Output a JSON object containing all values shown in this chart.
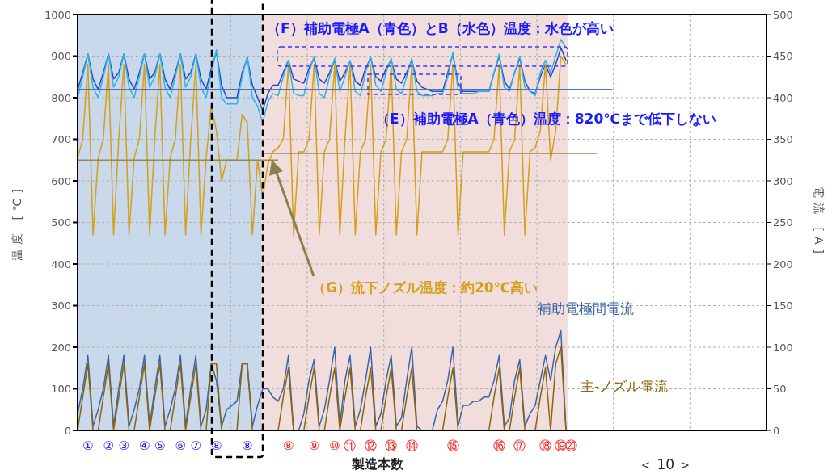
{
  "chart_data": {
    "type": "line",
    "ylabel": "温度 [℃]",
    "y2label": "電流 [A]",
    "xlabel": "製造本数",
    "categories": [
      null,
      null,
      "①",
      null,
      null,
      null,
      "②",
      null,
      null,
      "③",
      null,
      null,
      null,
      "④",
      null,
      null,
      "⑤",
      null,
      null,
      null,
      "⑥",
      null,
      null,
      "⑦",
      null,
      null,
      null,
      "⑧",
      null,
      null,
      null,
      null,
      null,
      "⑧",
      null,
      null,
      null,
      null,
      null,
      null,
      null,
      "⑧",
      null,
      null,
      null,
      null,
      "⑨",
      null,
      null,
      null,
      "⑩",
      null,
      null,
      "⑪",
      null,
      null,
      null,
      "⑫",
      null,
      null,
      null,
      "⑬",
      null,
      null,
      null,
      "⑭",
      null,
      null,
      null,
      null,
      null,
      null,
      null,
      "⑮",
      null,
      null,
      null,
      null,
      null,
      null,
      null,
      null,
      "⑯",
      null,
      null,
      null,
      "⑰",
      null,
      null,
      null,
      null,
      "⑱",
      null,
      null,
      "⑲",
      null,
      "⑳",
      null,
      null,
      null,
      null,
      null,
      null,
      null,
      null,
      null,
      null,
      null,
      null,
      null,
      null,
      null,
      null,
      null,
      null,
      null,
      null,
      null,
      null,
      null,
      null,
      null,
      null,
      null,
      null,
      null,
      null,
      null,
      null,
      null,
      null,
      null,
      null,
      null,
      null
    ],
    "ylim": [
      0,
      1000
    ],
    "yticks": [
      0,
      100,
      200,
      300,
      400,
      500,
      600,
      700,
      800,
      900,
      1000
    ],
    "y2lim": [
      0,
      500
    ],
    "y2ticks": [
      0,
      50,
      100,
      150,
      200,
      250,
      300,
      350,
      400,
      450,
      500
    ],
    "grid": true,
    "series": [
      {
        "color": "#2a46c4",
        "values": [
          820,
          860,
          905,
          845,
          820,
          860,
          905,
          845,
          860,
          905,
          845,
          820,
          860,
          905,
          845,
          860,
          905,
          845,
          820,
          860,
          905,
          845,
          860,
          905,
          845,
          820,
          870,
          910,
          830,
          800,
          800,
          800,
          860,
          895,
          830,
          800,
          770,
          810,
          830,
          830,
          860,
          890,
          845,
          840,
          835,
          870,
          895,
          845,
          835,
          860,
          890,
          840,
          860,
          888,
          840,
          830,
          870,
          895,
          850,
          840,
          870,
          890,
          845,
          835,
          860,
          890,
          840,
          825,
          820,
          815,
          815,
          815,
          860,
          905,
          835,
          815,
          815,
          815,
          815,
          815,
          815,
          860,
          900,
          840,
          820,
          860,
          895,
          840,
          815,
          810,
          850,
          880,
          850,
          880,
          920,
          890,
          null,
          null,
          null,
          null,
          null,
          null,
          null,
          null,
          null,
          null,
          null,
          null,
          null,
          null,
          null,
          null,
          null,
          null,
          null,
          null,
          null,
          null,
          null,
          null,
          null,
          null,
          null,
          null,
          null,
          null,
          null,
          null,
          null,
          null,
          null,
          null,
          null,
          null,
          null
        ]
      },
      {
        "color": "#2cb4e6",
        "values": [
          800,
          850,
          905,
          825,
          800,
          850,
          905,
          825,
          850,
          905,
          825,
          800,
          850,
          905,
          825,
          850,
          905,
          825,
          800,
          850,
          905,
          825,
          850,
          905,
          825,
          800,
          860,
          915,
          800,
          785,
          785,
          785,
          850,
          900,
          800,
          780,
          740,
          790,
          810,
          805,
          850,
          890,
          810,
          805,
          805,
          860,
          900,
          810,
          800,
          850,
          895,
          815,
          850,
          890,
          815,
          805,
          860,
          900,
          830,
          815,
          860,
          895,
          820,
          810,
          850,
          895,
          815,
          805,
          805,
          805,
          810,
          810,
          850,
          910,
          820,
          810,
          810,
          810,
          815,
          815,
          815,
          860,
          905,
          825,
          815,
          860,
          900,
          825,
          815,
          805,
          860,
          890,
          860,
          900,
          940,
          920,
          null,
          null,
          null,
          null,
          null,
          null,
          null,
          null,
          null,
          null,
          null,
          null,
          null,
          null,
          null,
          null,
          null,
          null,
          null,
          null,
          null,
          null,
          null,
          null,
          null,
          null,
          null,
          null,
          null,
          null,
          null,
          null,
          null,
          null,
          null,
          null,
          null,
          null,
          null
        ]
      },
      {
        "color": "#d4a017",
        "values": [
          655,
          700,
          880,
          470,
          655,
          700,
          880,
          470,
          700,
          880,
          470,
          655,
          700,
          880,
          470,
          700,
          880,
          470,
          655,
          700,
          880,
          470,
          700,
          880,
          470,
          655,
          780,
          720,
          600,
          650,
          650,
          650,
          760,
          740,
          470,
          650,
          560,
          640,
          670,
          680,
          700,
          880,
          470,
          670,
          670,
          700,
          880,
          470,
          670,
          700,
          880,
          470,
          700,
          880,
          470,
          670,
          700,
          880,
          470,
          670,
          700,
          880,
          470,
          670,
          700,
          880,
          470,
          670,
          670,
          670,
          670,
          670,
          700,
          880,
          470,
          670,
          670,
          670,
          670,
          670,
          670,
          700,
          880,
          470,
          670,
          700,
          880,
          470,
          670,
          680,
          720,
          880,
          650,
          720,
          900,
          880,
          null,
          null,
          null,
          null,
          null,
          null,
          null,
          null,
          null,
          null,
          null,
          null,
          null,
          null,
          null,
          null,
          null,
          null,
          null,
          null,
          null,
          null,
          null,
          null,
          null,
          null,
          null,
          null,
          null,
          null,
          null,
          null,
          null,
          null,
          null,
          null,
          null,
          null,
          null
        ]
      },
      {
        "name": "補助電極間電流",
        "color": "#3a64a8",
        "axis": "y2",
        "values": [
          20,
          50,
          90,
          5,
          25,
          50,
          90,
          5,
          50,
          90,
          5,
          25,
          50,
          90,
          5,
          50,
          90,
          5,
          25,
          50,
          90,
          5,
          50,
          90,
          5,
          25,
          80,
          60,
          5,
          25,
          30,
          35,
          80,
          80,
          5,
          30,
          50,
          50,
          40,
          35,
          50,
          90,
          0,
          0,
          20,
          60,
          85,
          5,
          25,
          60,
          100,
          5,
          60,
          90,
          5,
          25,
          60,
          100,
          5,
          20,
          60,
          90,
          5,
          15,
          60,
          100,
          5,
          0,
          0,
          0,
          25,
          35,
          60,
          100,
          5,
          30,
          30,
          35,
          35,
          40,
          40,
          60,
          90,
          5,
          15,
          60,
          85,
          5,
          20,
          30,
          60,
          90,
          60,
          100,
          120,
          0,
          null,
          null,
          null,
          null,
          null,
          null,
          null,
          null,
          null,
          null,
          null,
          null,
          null,
          null,
          null,
          null,
          null,
          null,
          null,
          null,
          null,
          null,
          null,
          null,
          null,
          null,
          null,
          null,
          null,
          null,
          null,
          null,
          null,
          null,
          null,
          null,
          null,
          null,
          null
        ]
      },
      {
        "name": "主-ノズル電流",
        "color": "#8b6508",
        "axis": "y2",
        "values": [
          0,
          40,
          80,
          0,
          0,
          40,
          80,
          0,
          40,
          80,
          0,
          0,
          40,
          80,
          0,
          40,
          80,
          0,
          0,
          40,
          80,
          0,
          40,
          80,
          0,
          0,
          80,
          80,
          0,
          0,
          0,
          0,
          80,
          80,
          0,
          0,
          0,
          0,
          0,
          0,
          40,
          75,
          0,
          0,
          0,
          40,
          75,
          0,
          0,
          40,
          75,
          0,
          40,
          75,
          0,
          0,
          40,
          75,
          0,
          0,
          40,
          75,
          0,
          0,
          40,
          75,
          0,
          0,
          0,
          0,
          0,
          0,
          40,
          75,
          0,
          0,
          0,
          0,
          0,
          0,
          0,
          40,
          75,
          0,
          0,
          40,
          75,
          0,
          0,
          0,
          40,
          75,
          0,
          80,
          100,
          0,
          null,
          null,
          null,
          null,
          null,
          null,
          null,
          null,
          null,
          null,
          null,
          null,
          null,
          null,
          null,
          null,
          null,
          null,
          null,
          null,
          null,
          null,
          null,
          null,
          null,
          null,
          null,
          null,
          null,
          null,
          null,
          null,
          null,
          null,
          null,
          null,
          null,
          null,
          null
        ]
      },
      {
        "color": "#4f74b0",
        "values": [
          820,
          820,
          820,
          820,
          820,
          820,
          820,
          820,
          820,
          820,
          820,
          820,
          820,
          820,
          820,
          820,
          820,
          820,
          820,
          820,
          820,
          820,
          820,
          820,
          820,
          820,
          820,
          820,
          820,
          820,
          820,
          820,
          820,
          820,
          820,
          820,
          820,
          820,
          820,
          820,
          820,
          820,
          820,
          820,
          820,
          820,
          820,
          820,
          820,
          820,
          820,
          820,
          820,
          820,
          820,
          820,
          820,
          820,
          820,
          820,
          820,
          820,
          820,
          820,
          820,
          820,
          820,
          820,
          820,
          820,
          820,
          820,
          820,
          820,
          820,
          820,
          820,
          820,
          820,
          820,
          820,
          820,
          820,
          820,
          820,
          820,
          820,
          820,
          820,
          820,
          820,
          820,
          820,
          820,
          820,
          820,
          820,
          820,
          820,
          820,
          820,
          820,
          820,
          820,
          820,
          null,
          null,
          null,
          null,
          null,
          null,
          null,
          null,
          null,
          null,
          null,
          null,
          null,
          null,
          null,
          null,
          null,
          null,
          null,
          null,
          null,
          null,
          null,
          null,
          null,
          null,
          null,
          null,
          null,
          null
        ]
      },
      {
        "color": "#9a8a4a",
        "values": [
          650,
          650,
          650,
          650,
          650,
          650,
          650,
          650,
          650,
          650,
          650,
          650,
          650,
          650,
          650,
          650,
          650,
          650,
          650,
          650,
          650,
          650,
          650,
          650,
          650,
          650,
          650,
          650,
          650,
          650,
          650,
          650,
          650,
          650,
          650,
          650,
          650,
          650,
          650,
          650,
          null,
          null,
          null,
          null,
          null,
          null,
          null,
          null,
          null,
          null,
          null,
          null,
          null,
          null,
          null,
          null,
          null,
          null,
          null,
          null,
          null,
          null,
          null,
          null,
          null,
          null,
          null,
          null,
          null,
          null,
          null,
          null,
          null,
          null,
          null,
          null,
          null,
          null,
          null,
          null,
          null,
          null,
          null,
          null,
          null,
          null,
          null,
          null,
          null,
          null,
          null,
          null,
          null,
          null,
          null,
          null,
          null,
          null,
          null,
          null,
          null,
          null,
          null,
          null,
          null,
          null,
          null,
          null,
          null,
          null,
          null,
          null,
          null,
          null,
          null,
          null,
          null,
          null,
          null,
          null,
          null,
          null,
          null,
          null,
          null,
          null,
          null,
          null,
          null,
          null,
          null,
          null,
          null,
          null,
          null
        ]
      },
      {
        "color": "#9a8a4a",
        "values": [
          null,
          null,
          null,
          null,
          null,
          null,
          null,
          null,
          null,
          null,
          null,
          null,
          null,
          null,
          null,
          null,
          null,
          null,
          null,
          null,
          null,
          null,
          null,
          null,
          null,
          null,
          null,
          null,
          null,
          null,
          null,
          null,
          null,
          null,
          null,
          null,
          666,
          666,
          666,
          666,
          666,
          666,
          666,
          666,
          666,
          666,
          666,
          666,
          666,
          666,
          666,
          666,
          666,
          666,
          666,
          666,
          666,
          666,
          666,
          666,
          666,
          666,
          666,
          666,
          666,
          666,
          666,
          666,
          666,
          666,
          666,
          666,
          666,
          666,
          666,
          666,
          666,
          666,
          666,
          666,
          666,
          666,
          666,
          666,
          666,
          666,
          666,
          666,
          666,
          666,
          666,
          666,
          666,
          666,
          666,
          666,
          666,
          666,
          666,
          666,
          666,
          666,
          null,
          null,
          null,
          null,
          null,
          null,
          null,
          null,
          null,
          null,
          null,
          null,
          null,
          null,
          null,
          null,
          null,
          null,
          null,
          null,
          null,
          null,
          null,
          null,
          null,
          null,
          null,
          null,
          null,
          null,
          null,
          null,
          null
        ]
      }
    ],
    "annotations": [
      "（F）補助電極A（青色）とB（水色）温度：水色が高い",
      "（E）補助電極A（青色）温度：820℃まで低下しない",
      "（G）流下ノズル温度：約20℃高い",
      "＜ 10 ＞"
    ]
  }
}
